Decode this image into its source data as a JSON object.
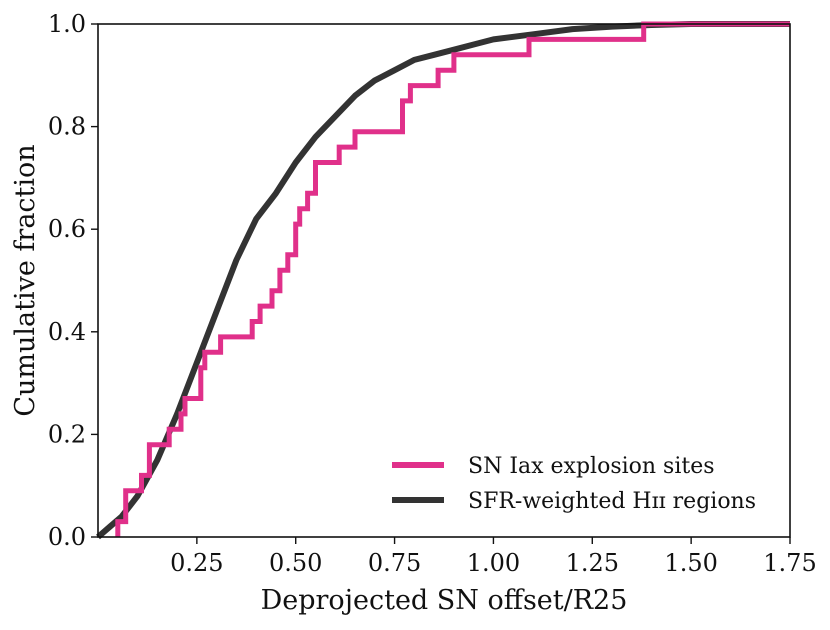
{
  "chart_data": {
    "type": "line",
    "title": "",
    "xlabel": "Deprojected SN offset/R25",
    "ylabel": "Cumulative fraction",
    "xlim": [
      0.0,
      1.75
    ],
    "ylim": [
      0.0,
      1.0
    ],
    "xticks": [
      0.25,
      0.5,
      0.75,
      1.0,
      1.25,
      1.5,
      1.75
    ],
    "xtick_labels": [
      "0.25",
      "0.50",
      "0.75",
      "1.00",
      "1.25",
      "1.50",
      "1.75"
    ],
    "yticks": [
      0.0,
      0.2,
      0.4,
      0.6,
      0.8,
      1.0
    ],
    "ytick_labels": [
      "0.0",
      "0.2",
      "0.4",
      "0.6",
      "0.8",
      "1.0"
    ],
    "legend_position": "lower-right",
    "series": [
      {
        "name": "SN Iax explosion sites",
        "style": "step",
        "color": "#e0308a",
        "x": [
          0.05,
          0.07,
          0.11,
          0.13,
          0.18,
          0.21,
          0.22,
          0.26,
          0.27,
          0.31,
          0.39,
          0.41,
          0.44,
          0.46,
          0.48,
          0.5,
          0.51,
          0.53,
          0.55,
          0.61,
          0.65,
          0.77,
          0.79,
          0.86,
          0.9,
          1.09,
          1.38
        ],
        "y": [
          0.03,
          0.09,
          0.12,
          0.18,
          0.21,
          0.24,
          0.27,
          0.33,
          0.36,
          0.39,
          0.42,
          0.45,
          0.48,
          0.52,
          0.55,
          0.61,
          0.64,
          0.67,
          0.73,
          0.76,
          0.79,
          0.85,
          0.88,
          0.91,
          0.94,
          0.97,
          1.0
        ]
      },
      {
        "name": "SFR-weighted HII regions",
        "legend_label": "SFR-weighted Hɪɪ regions",
        "style": "line",
        "color": "#333333",
        "x": [
          0.0,
          0.03,
          0.06,
          0.1,
          0.15,
          0.2,
          0.25,
          0.3,
          0.35,
          0.4,
          0.45,
          0.5,
          0.55,
          0.6,
          0.65,
          0.7,
          0.75,
          0.8,
          0.85,
          0.9,
          0.95,
          1.0,
          1.1,
          1.2,
          1.3,
          1.4,
          1.5,
          1.6,
          1.75
        ],
        "y": [
          0.0,
          0.02,
          0.04,
          0.08,
          0.15,
          0.24,
          0.34,
          0.44,
          0.54,
          0.62,
          0.67,
          0.73,
          0.78,
          0.82,
          0.86,
          0.89,
          0.91,
          0.93,
          0.94,
          0.95,
          0.96,
          0.97,
          0.98,
          0.99,
          0.995,
          0.998,
          1.0,
          1.0,
          1.0
        ]
      }
    ]
  }
}
